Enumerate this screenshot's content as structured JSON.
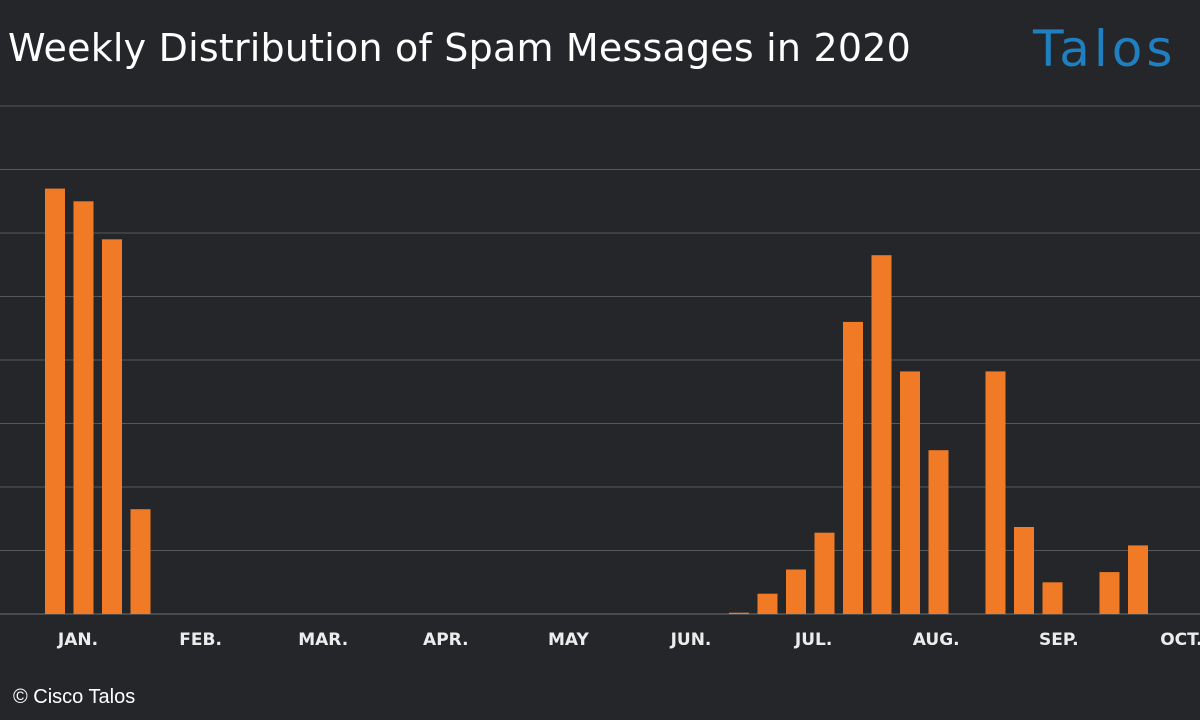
{
  "header": {
    "title": "Weekly Distribution of Spam Messages in 2020",
    "logo_text": "Talos"
  },
  "footer": {
    "copyright": "© Cisco Talos"
  },
  "colors": {
    "background": "#24262a",
    "bar": "#f07a25",
    "gridline": "#55585d",
    "title": "#ffffff",
    "logo": "#1f7fc1"
  },
  "chart_data": {
    "type": "bar",
    "title": "Weekly Distribution of Spam Messages in 2020",
    "xlabel": "",
    "ylabel": "",
    "grid": true,
    "y_tick_labels_shown": false,
    "ylim": [
      0,
      8
    ],
    "month_labels": [
      "JAN.",
      "FEB.",
      "MAR.",
      "APR.",
      "MAY",
      "JUN.",
      "JUL.",
      "AUG.",
      "SEP.",
      "OCT."
    ],
    "values": [
      6.7,
      6.5,
      5.9,
      1.65,
      0,
      0,
      0,
      0,
      0,
      0,
      0,
      0,
      0,
      0,
      0,
      0,
      0,
      0,
      0,
      0,
      0,
      0,
      0,
      0,
      0.02,
      0.32,
      0.7,
      1.28,
      4.6,
      5.65,
      3.82,
      2.58,
      0,
      3.82,
      1.37,
      0.5,
      0,
      0.66,
      1.08
    ]
  }
}
